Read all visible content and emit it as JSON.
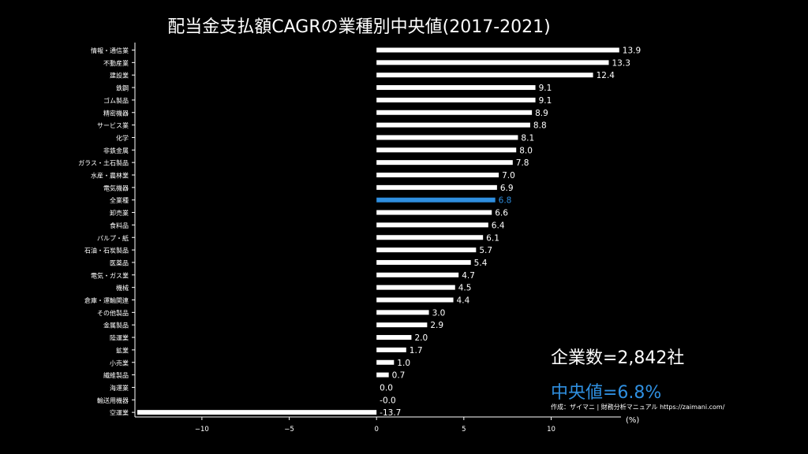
{
  "chart_data": {
    "type": "bar",
    "orientation": "horizontal",
    "title": "配当金支払額CAGRの業種別中央値(2017-2021)",
    "xlabel": "(%)",
    "ylabel": "",
    "xlim": [
      -13.7,
      14.0
    ],
    "xticks": [
      -10,
      -5,
      0,
      5,
      10
    ],
    "xtick_labels": [
      "−10",
      "−5",
      "0",
      "5",
      "10"
    ],
    "grid": false,
    "highlight_category": "全業種",
    "colors": {
      "bar": "#ffffff",
      "highlight": "#2f8fe0",
      "background": "#000000"
    },
    "categories": [
      "情報・通信業",
      "不動産業",
      "建設業",
      "鉄鋼",
      "ゴム製品",
      "精密機器",
      "サービス業",
      "化学",
      "非鉄金属",
      "ガラス・土石製品",
      "水産・農林業",
      "電気機器",
      "全業種",
      "卸売業",
      "食料品",
      "パルプ・紙",
      "石油・石炭製品",
      "医薬品",
      "電気・ガス業",
      "機械",
      "倉庫・運輸関連",
      "その他製品",
      "金属製品",
      "陸運業",
      "鉱業",
      "小売業",
      "繊維製品",
      "海運業",
      "輸送用機器",
      "空運業"
    ],
    "values": [
      13.9,
      13.3,
      12.4,
      9.1,
      9.1,
      8.9,
      8.8,
      8.1,
      8.0,
      7.8,
      7.0,
      6.9,
      6.8,
      6.6,
      6.4,
      6.1,
      5.7,
      5.4,
      4.7,
      4.5,
      4.4,
      3.0,
      2.9,
      2.0,
      1.7,
      1.0,
      0.7,
      0.0,
      -0.0,
      -13.7
    ],
    "value_labels": [
      "13.9",
      "13.3",
      "12.4",
      "9.1",
      "9.1",
      "8.9",
      "8.8",
      "8.1",
      "8.0",
      "7.8",
      "7.0",
      "6.9",
      "6.8",
      "6.6",
      "6.4",
      "6.1",
      "5.7",
      "5.4",
      "4.7",
      "4.5",
      "4.4",
      "3.0",
      "2.9",
      "2.0",
      "1.7",
      "1.0",
      "0.7",
      "0.0",
      "-0.0",
      "-13.7"
    ]
  },
  "summary": {
    "company_count": "企業数=2,842社",
    "median": "中央値=6.8%"
  },
  "credit": "作成：ザイマニ | 財務分析マニュアル https://zaimani.com/"
}
